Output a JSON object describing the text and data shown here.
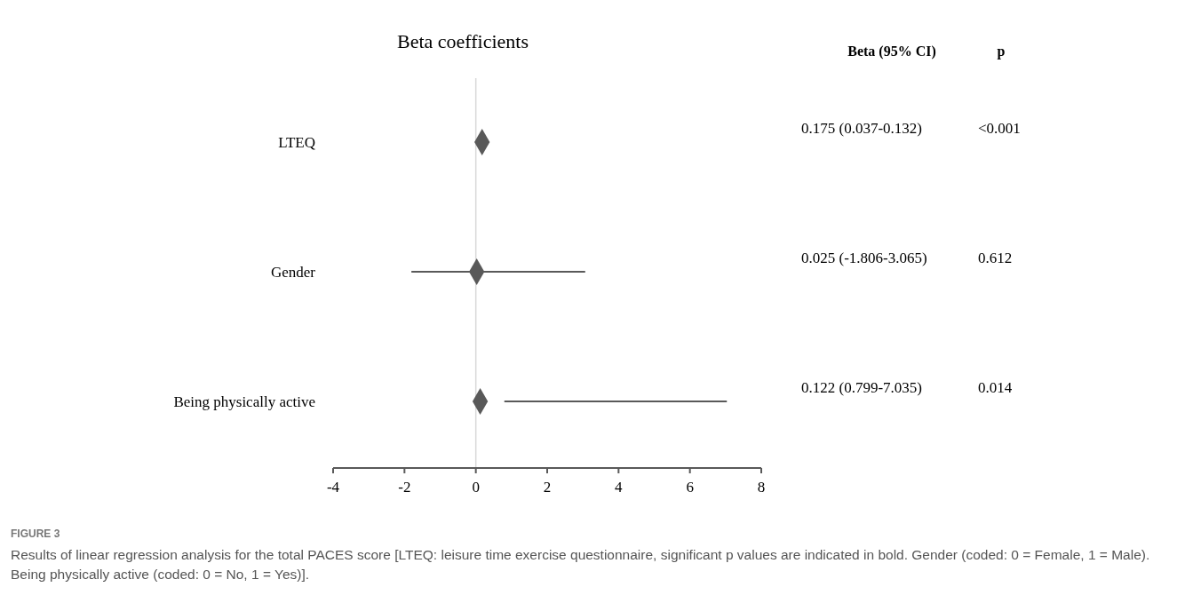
{
  "chart_data": {
    "type": "scatter",
    "orientation": "horizontal",
    "title": "Beta coefficients",
    "categories": [
      "LTEQ",
      "Gender",
      "Being physically active"
    ],
    "values": [
      0.175,
      0.025,
      0.122
    ],
    "errors": [
      [
        0.037,
        0.132
      ],
      [
        -1.806,
        3.065
      ],
      [
        0.799,
        7.035
      ]
    ],
    "value_labels": [
      "0.175 (0.037-0.132)",
      "0.025 (-1.806-3.065)",
      "0.122 (0.799-7.035)"
    ],
    "color": "#595959",
    "marker": "diamond",
    "xlim": [
      -4,
      8
    ],
    "xticks": [
      -4,
      -2,
      0,
      2,
      4,
      6,
      8
    ],
    "ref_lines": [
      {
        "axis": "x",
        "value": 0,
        "color": "#d9d9d9"
      }
    ],
    "annotations": [
      "Beta (95% CI)",
      "p",
      "<0.001",
      "0.612",
      "0.014",
      "FIGURE 3",
      "Results of linear regression analysis for the total PACES score [LTEQ: leisure time exercise questionnaire, significant p values are indicated in bold. Gender (coded: 0 = Female, 1 = Male). Being physically active (coded: 0 = No, 1 = Yes)]."
    ]
  }
}
